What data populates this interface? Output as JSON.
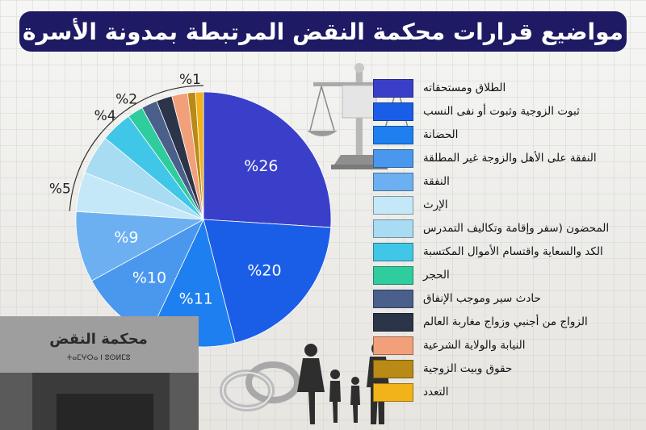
{
  "title": "مواضيع قرارات محكمة النقض المرتبطة بمدونة الأسرة",
  "chart_data": {
    "type": "pie",
    "title": "مواضيع قرارات محكمة النقض المرتبطة بمدونة الأسرة",
    "categories": [
      "الطلاق ومستحقاته",
      "ثبوت الزوجية وثبوت أو نفى النسب",
      "الحضانة",
      "النفقة على الأهل والزوجة غير المطلقة",
      "النفقة",
      "الإرث",
      "المحضون (سفر وإقامة وتكاليف التمدرس",
      "الكد والسعاية واقتسام الأموال المكتسبة",
      "الحجر",
      "حادث سير وموجب الإنفاق",
      "الزواج من أجنبي وزواج مغاربة العالم",
      "النيابة والولاية الشرعية",
      "حقوق وبيت الزوجية",
      "التعدد"
    ],
    "values": [
      26,
      20,
      11,
      10,
      9,
      5,
      5,
      4,
      2,
      2,
      2,
      2,
      1,
      1
    ],
    "labels": [
      "%26",
      "%20",
      "%11",
      "%10",
      "%9",
      "%5",
      "",
      "%4",
      "%2",
      "",
      "",
      "",
      "%1",
      ""
    ],
    "colors": [
      "#3a3fc9",
      "#1a5ee8",
      "#1e7ff0",
      "#4a97ee",
      "#6cb0f2",
      "#c5e8f8",
      "#a7dcf3",
      "#40c7e8",
      "#2fcc9e",
      "#4a5f8a",
      "#2b3448",
      "#f2a07a",
      "#b98a16",
      "#f2b21a"
    ]
  },
  "scale_icon": "scales-of-justice-icon",
  "building_sign": "محكمة النقض",
  "building_sign_sub": "ⵜⴰⵎⵖⵔⴰ ⵏ ⵓⵙⵍⵎⵓ",
  "family_icon": "family-silhouette-icon",
  "rings_icon": "wedding-rings-icon"
}
